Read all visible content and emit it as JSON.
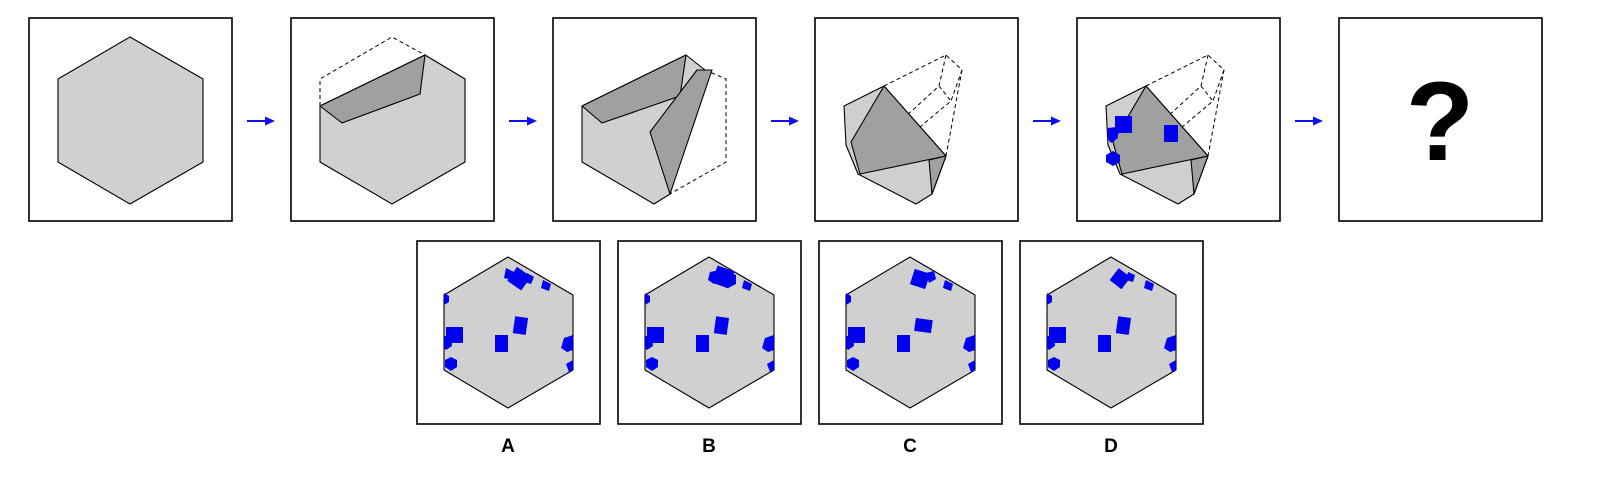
{
  "puzzle": {
    "question_mark": "?",
    "options": [
      {
        "label": "A"
      },
      {
        "label": "B"
      },
      {
        "label": "C"
      },
      {
        "label": "D"
      }
    ]
  },
  "colors": {
    "paper": "#d0d0d0",
    "fold": "#a0a0a0",
    "hole": "#0000ee",
    "arrow": "#1010ee"
  },
  "icons": [
    "arrow-right-icon"
  ]
}
